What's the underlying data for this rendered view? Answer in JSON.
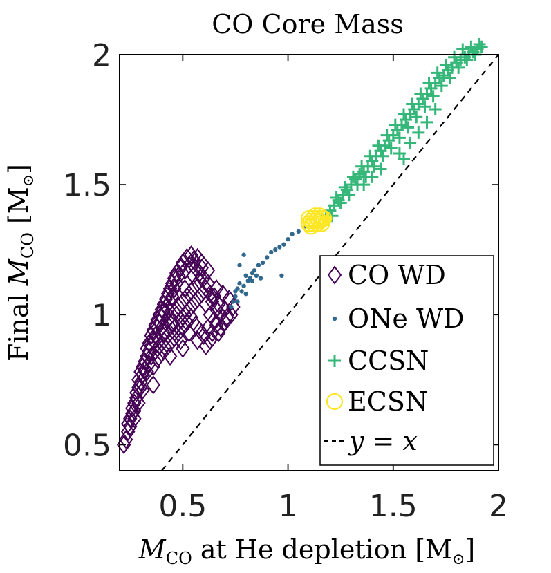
{
  "chart_data": {
    "type": "scatter",
    "title": "CO Core Mass",
    "xlabel_var": "M",
    "xlabel_sub": "CO",
    "xlabel_rest": " at He depletion [M",
    "xlabel_end": "]",
    "ylabel_pre": "Final ",
    "ylabel_var": "M",
    "ylabel_sub": "CO",
    "ylabel_rest": " [M",
    "ylabel_end": "]",
    "xlim": [
      0.2,
      2.0
    ],
    "ylim": [
      0.4,
      2.0
    ],
    "xticks": [
      "0.5",
      "1",
      "1.5",
      "2"
    ],
    "yticks": [
      "0.5",
      "1",
      "1.5",
      "2"
    ],
    "xtick_values": [
      0.5,
      1.0,
      1.5,
      2.0
    ],
    "ytick_values": [
      0.5,
      1.0,
      1.5,
      2.0
    ],
    "grid": false,
    "legend_position": "bottom-right",
    "colors": {
      "co_wd": "#440154",
      "one_wd": "#31688e",
      "ccsn": "#35b779",
      "ecsn": "#fde725",
      "identity": "#000000"
    },
    "legend": [
      {
        "label": "CO WD",
        "marker": "diamond"
      },
      {
        "label": "ONe WD",
        "marker": "dot"
      },
      {
        "label": "CCSN",
        "marker": "plus"
      },
      {
        "label": "ECSN",
        "marker": "circle"
      },
      {
        "label": "y = x",
        "marker": "dashed-line"
      }
    ],
    "series": [
      {
        "name": "CO WD",
        "marker": "diamond",
        "points": [
          [
            0.22,
            0.5
          ],
          [
            0.23,
            0.52
          ],
          [
            0.24,
            0.55
          ],
          [
            0.24,
            0.58
          ],
          [
            0.25,
            0.57
          ],
          [
            0.25,
            0.6
          ],
          [
            0.26,
            0.62
          ],
          [
            0.26,
            0.64
          ],
          [
            0.27,
            0.66
          ],
          [
            0.27,
            0.63
          ],
          [
            0.28,
            0.7
          ],
          [
            0.28,
            0.68
          ],
          [
            0.29,
            0.72
          ],
          [
            0.29,
            0.75
          ],
          [
            0.3,
            0.74
          ],
          [
            0.3,
            0.78
          ],
          [
            0.31,
            0.77
          ],
          [
            0.31,
            0.8
          ],
          [
            0.32,
            0.82
          ],
          [
            0.32,
            0.79
          ],
          [
            0.33,
            0.84
          ],
          [
            0.33,
            0.87
          ],
          [
            0.34,
            0.86
          ],
          [
            0.34,
            0.89
          ],
          [
            0.35,
            0.88
          ],
          [
            0.35,
            0.92
          ],
          [
            0.36,
            0.9
          ],
          [
            0.36,
            0.94
          ],
          [
            0.37,
            0.92
          ],
          [
            0.37,
            0.96
          ],
          [
            0.38,
            0.95
          ],
          [
            0.38,
            0.98
          ],
          [
            0.39,
            0.97
          ],
          [
            0.39,
            1.0
          ],
          [
            0.4,
            0.99
          ],
          [
            0.4,
            1.02
          ],
          [
            0.41,
            1.01
          ],
          [
            0.41,
            1.04
          ],
          [
            0.42,
            1.03
          ],
          [
            0.42,
            1.06
          ],
          [
            0.43,
            1.02
          ],
          [
            0.43,
            1.08
          ],
          [
            0.44,
            1.05
          ],
          [
            0.44,
            1.1
          ],
          [
            0.45,
            1.07
          ],
          [
            0.45,
            1.12
          ],
          [
            0.46,
            1.1
          ],
          [
            0.46,
            1.14
          ],
          [
            0.47,
            1.12
          ],
          [
            0.47,
            1.16
          ],
          [
            0.48,
            1.15
          ],
          [
            0.49,
            1.18
          ],
          [
            0.5,
            1.2
          ],
          [
            0.51,
            1.17
          ],
          [
            0.52,
            1.22
          ],
          [
            0.53,
            1.19
          ],
          [
            0.54,
            1.23
          ],
          [
            0.55,
            1.21
          ],
          [
            0.56,
            1.18
          ],
          [
            0.57,
            1.22
          ],
          [
            0.58,
            1.16
          ],
          [
            0.59,
            1.2
          ],
          [
            0.6,
            1.14
          ],
          [
            0.61,
            1.1
          ],
          [
            0.62,
            1.12
          ],
          [
            0.63,
            1.08
          ],
          [
            0.64,
            1.05
          ],
          [
            0.65,
            1.07
          ],
          [
            0.66,
            1.02
          ],
          [
            0.67,
            1.04
          ],
          [
            0.68,
            1.0
          ],
          [
            0.7,
            1.02
          ],
          [
            0.71,
            0.99
          ],
          [
            0.73,
            1.0
          ],
          [
            0.74,
            1.03
          ],
          [
            0.72,
            1.06
          ],
          [
            0.69,
            1.08
          ],
          [
            0.66,
            1.1
          ],
          [
            0.35,
            0.84
          ],
          [
            0.37,
            0.86
          ],
          [
            0.39,
            0.88
          ],
          [
            0.41,
            0.9
          ],
          [
            0.43,
            0.92
          ],
          [
            0.45,
            0.94
          ],
          [
            0.47,
            0.96
          ],
          [
            0.49,
            0.98
          ],
          [
            0.51,
            1.0
          ],
          [
            0.53,
            1.02
          ],
          [
            0.55,
            1.04
          ],
          [
            0.57,
            1.06
          ],
          [
            0.59,
            1.08
          ],
          [
            0.61,
            1.04
          ],
          [
            0.63,
            1.0
          ],
          [
            0.65,
            0.98
          ],
          [
            0.36,
            0.8
          ],
          [
            0.38,
            0.83
          ],
          [
            0.4,
            0.85
          ],
          [
            0.42,
            0.87
          ],
          [
            0.44,
            0.89
          ],
          [
            0.46,
            0.91
          ],
          [
            0.48,
            0.93
          ],
          [
            0.5,
            0.95
          ],
          [
            0.52,
            0.97
          ],
          [
            0.54,
            0.99
          ],
          [
            0.56,
            0.96
          ],
          [
            0.58,
            0.94
          ],
          [
            0.6,
            0.92
          ],
          [
            0.62,
            0.95
          ],
          [
            0.64,
            0.93
          ],
          [
            0.66,
            0.96
          ],
          [
            0.4,
            0.95
          ],
          [
            0.42,
            0.97
          ],
          [
            0.44,
            0.99
          ],
          [
            0.46,
            1.01
          ],
          [
            0.48,
            1.03
          ],
          [
            0.5,
            1.05
          ],
          [
            0.52,
            1.07
          ],
          [
            0.54,
            1.09
          ],
          [
            0.56,
            1.11
          ],
          [
            0.58,
            1.13
          ],
          [
            0.47,
            1.0
          ],
          [
            0.49,
            0.9
          ],
          [
            0.53,
            0.93
          ],
          [
            0.57,
            0.9
          ],
          [
            0.61,
            0.88
          ],
          [
            0.63,
            0.9
          ],
          [
            0.33,
            0.78
          ],
          [
            0.34,
            0.81
          ],
          [
            0.3,
            0.72
          ],
          [
            0.31,
            0.71
          ],
          [
            0.38,
            0.91
          ],
          [
            0.41,
            0.93
          ],
          [
            0.45,
            0.97
          ],
          [
            0.51,
            1.1
          ],
          [
            0.55,
            1.15
          ],
          [
            0.59,
            1.18
          ],
          [
            0.62,
            1.17
          ],
          [
            0.36,
            0.73
          ],
          [
            0.29,
            0.66
          ],
          [
            0.27,
            0.6
          ],
          [
            0.5,
            0.87
          ],
          [
            0.44,
            0.84
          ],
          [
            0.68,
            0.95
          ],
          [
            0.7,
            0.97
          ],
          [
            0.67,
            0.93
          ]
        ]
      },
      {
        "name": "ONe WD",
        "marker": "dot",
        "points": [
          [
            0.73,
            1.03
          ],
          [
            0.74,
            1.05
          ],
          [
            0.75,
            1.07
          ],
          [
            0.76,
            1.1
          ],
          [
            0.77,
            1.12
          ],
          [
            0.78,
            1.09
          ],
          [
            0.79,
            1.11
          ],
          [
            0.8,
            1.15
          ],
          [
            0.81,
            1.13
          ],
          [
            0.82,
            1.14
          ],
          [
            0.83,
            1.16
          ],
          [
            0.84,
            1.17
          ],
          [
            0.85,
            1.15
          ],
          [
            0.86,
            1.19
          ],
          [
            0.88,
            1.2
          ],
          [
            0.9,
            1.22
          ],
          [
            0.92,
            1.24
          ],
          [
            0.94,
            1.25
          ],
          [
            0.96,
            1.26
          ],
          [
            0.98,
            1.27
          ],
          [
            1.0,
            1.29
          ],
          [
            1.02,
            1.31
          ],
          [
            1.05,
            1.32
          ],
          [
            1.08,
            1.34
          ],
          [
            0.79,
            1.23
          ],
          [
            0.77,
            1.19
          ],
          [
            0.75,
            1.09
          ],
          [
            0.83,
            1.13
          ],
          [
            0.8,
            1.08
          ],
          [
            0.87,
            1.14
          ],
          [
            0.97,
            1.15
          ],
          [
            0.76,
            1.05
          ]
        ]
      },
      {
        "name": "CCSN",
        "marker": "plus",
        "points": [
          [
            1.18,
            1.38
          ],
          [
            1.2,
            1.4
          ],
          [
            1.22,
            1.42
          ],
          [
            1.24,
            1.44
          ],
          [
            1.26,
            1.46
          ],
          [
            1.28,
            1.48
          ],
          [
            1.3,
            1.5
          ],
          [
            1.32,
            1.52
          ],
          [
            1.34,
            1.54
          ],
          [
            1.36,
            1.55
          ],
          [
            1.38,
            1.57
          ],
          [
            1.4,
            1.59
          ],
          [
            1.42,
            1.61
          ],
          [
            1.44,
            1.63
          ],
          [
            1.46,
            1.65
          ],
          [
            1.48,
            1.67
          ],
          [
            1.5,
            1.69
          ],
          [
            1.52,
            1.71
          ],
          [
            1.54,
            1.73
          ],
          [
            1.56,
            1.75
          ],
          [
            1.58,
            1.77
          ],
          [
            1.6,
            1.79
          ],
          [
            1.62,
            1.81
          ],
          [
            1.64,
            1.83
          ],
          [
            1.66,
            1.85
          ],
          [
            1.68,
            1.87
          ],
          [
            1.7,
            1.89
          ],
          [
            1.72,
            1.91
          ],
          [
            1.74,
            1.92
          ],
          [
            1.76,
            1.94
          ],
          [
            1.78,
            1.95
          ],
          [
            1.8,
            1.97
          ],
          [
            1.82,
            1.98
          ],
          [
            1.84,
            1.99
          ],
          [
            1.86,
            2.0
          ],
          [
            1.88,
            2.01
          ],
          [
            1.9,
            2.02
          ],
          [
            1.92,
            2.03
          ],
          [
            1.21,
            1.38
          ],
          [
            1.25,
            1.43
          ],
          [
            1.29,
            1.46
          ],
          [
            1.33,
            1.5
          ],
          [
            1.37,
            1.53
          ],
          [
            1.41,
            1.57
          ],
          [
            1.45,
            1.61
          ],
          [
            1.49,
            1.64
          ],
          [
            1.53,
            1.68
          ],
          [
            1.57,
            1.72
          ],
          [
            1.61,
            1.76
          ],
          [
            1.65,
            1.8
          ],
          [
            1.69,
            1.84
          ],
          [
            1.73,
            1.88
          ],
          [
            1.77,
            1.91
          ],
          [
            1.81,
            1.95
          ],
          [
            1.85,
            1.98
          ],
          [
            1.89,
            2.0
          ],
          [
            1.23,
            1.45
          ],
          [
            1.27,
            1.49
          ],
          [
            1.31,
            1.53
          ],
          [
            1.35,
            1.57
          ],
          [
            1.39,
            1.61
          ],
          [
            1.43,
            1.65
          ],
          [
            1.47,
            1.69
          ],
          [
            1.51,
            1.73
          ],
          [
            1.55,
            1.77
          ],
          [
            1.59,
            1.81
          ],
          [
            1.63,
            1.85
          ],
          [
            1.67,
            1.89
          ],
          [
            1.71,
            1.93
          ],
          [
            1.75,
            1.96
          ],
          [
            1.79,
            1.99
          ],
          [
            1.83,
            2.02
          ],
          [
            1.87,
            2.03
          ],
          [
            1.91,
            2.04
          ],
          [
            1.53,
            1.62
          ],
          [
            1.55,
            1.6
          ],
          [
            1.58,
            1.66
          ],
          [
            1.62,
            1.7
          ],
          [
            1.44,
            1.56
          ],
          [
            1.4,
            1.53
          ],
          [
            1.36,
            1.5
          ],
          [
            1.66,
            1.74
          ],
          [
            1.7,
            1.79
          ]
        ]
      },
      {
        "name": "ECSN",
        "marker": "circle",
        "points": [
          [
            1.1,
            1.35
          ],
          [
            1.11,
            1.36
          ],
          [
            1.12,
            1.37
          ],
          [
            1.13,
            1.38
          ],
          [
            1.14,
            1.37
          ],
          [
            1.15,
            1.36
          ],
          [
            1.16,
            1.37
          ],
          [
            1.12,
            1.35
          ],
          [
            1.14,
            1.35
          ],
          [
            1.13,
            1.36
          ],
          [
            1.11,
            1.34
          ],
          [
            1.15,
            1.38
          ],
          [
            1.16,
            1.35
          ],
          [
            1.1,
            1.37
          ],
          [
            1.17,
            1.37
          ]
        ]
      }
    ]
  }
}
